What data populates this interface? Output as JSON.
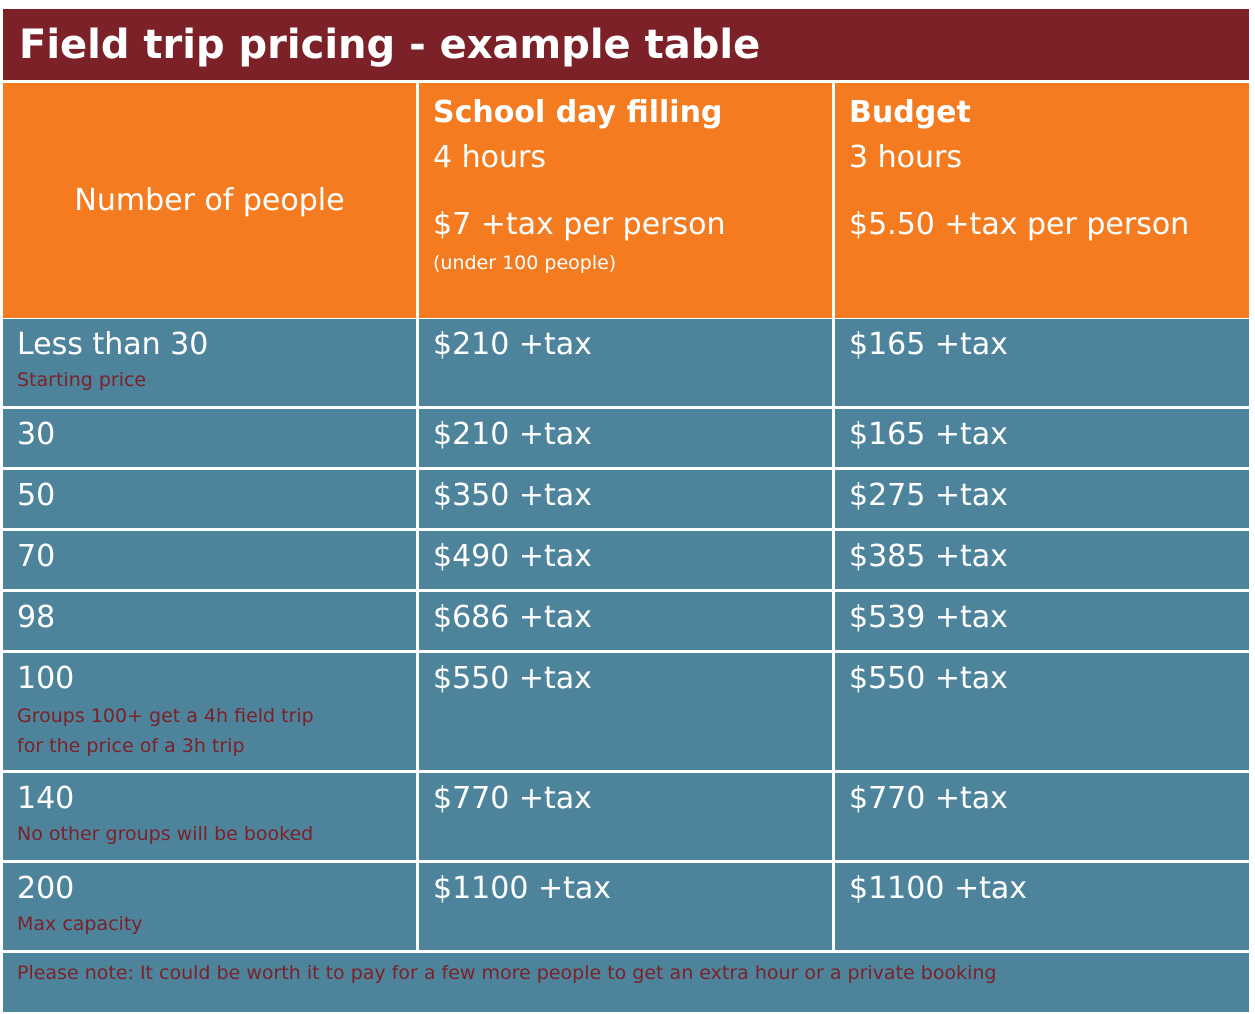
{
  "title": "Field trip pricing - example table",
  "header": {
    "col1": "Number of people",
    "col2": {
      "name": "School day filling",
      "duration": "4 hours",
      "price": "$7 +tax per person",
      "note": "(under 100 people)"
    },
    "col3": {
      "name": "Budget",
      "duration": "3 hours",
      "price": "$5.50 +tax per person"
    }
  },
  "rows": [
    {
      "people": "Less than 30",
      "note": "Starting price",
      "school": "$210 +tax",
      "budget": "$165 +tax"
    },
    {
      "people": "30",
      "school": "$210 +tax",
      "budget": "$165 +tax"
    },
    {
      "people": "50",
      "school": "$350 +tax",
      "budget": "$275 +tax"
    },
    {
      "people": "70",
      "school": "$490 +tax",
      "budget": "$385 +tax"
    },
    {
      "people": "98",
      "school": "$686 +tax",
      "budget": "$539 +tax"
    },
    {
      "people": "100",
      "note": "Groups 100+ get a 4h field trip",
      "note2": "for the price of a 3h trip",
      "school": "$550 +tax",
      "budget": "$550 +tax"
    },
    {
      "people": "140",
      "note": "No other groups will be booked",
      "school": "$770 +tax",
      "budget": "$770 +tax"
    },
    {
      "people": "200",
      "note": "Max capacity",
      "school": "$1100 +tax",
      "budget": "$1100 +tax"
    }
  ],
  "footer_note": "Please note: It could be worth it to pay for a few more people to get an extra hour or a private booking",
  "colors": {
    "title_bg": "#7c2128",
    "header_bg": "#f47b20",
    "body_bg": "#4d849c",
    "note_text": "#7c2128"
  }
}
